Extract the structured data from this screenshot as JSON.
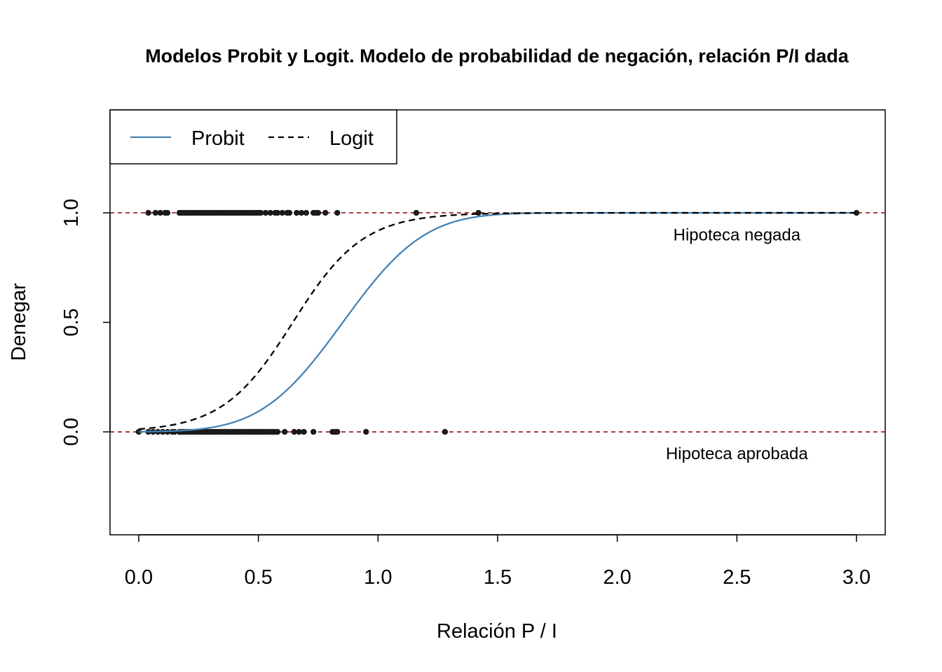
{
  "chart_data": {
    "type": "line",
    "title": "Modelos Probit y Logit. Modelo de probabilidad de negación, relación P/I dada",
    "xlabel": "Relación P / I",
    "ylabel": "Denegar",
    "xlim": [
      -0.12,
      3.12
    ],
    "ylim": [
      -0.47,
      1.47
    ],
    "x_ticks": [
      0.0,
      0.5,
      1.0,
      1.5,
      2.0,
      2.5,
      3.0
    ],
    "x_tick_labels": [
      "0.0",
      "0.5",
      "1.0",
      "1.5",
      "2.0",
      "2.5",
      "3.0"
    ],
    "y_ticks": [
      0.0,
      0.5,
      1.0
    ],
    "y_tick_labels": [
      "0.0",
      "0.5",
      "1.0"
    ],
    "grid": false,
    "reference_lines": [
      {
        "y": 0.0,
        "style": "dashed",
        "color": "#8b0000"
      },
      {
        "y": 1.0,
        "style": "dashed",
        "color": "#8b0000"
      }
    ],
    "series": [
      {
        "name": "Probit",
        "style": "solid",
        "color": "#4682b4",
        "model": "probit",
        "intercept": -3.19,
        "slope": 3.74,
        "x_range": [
          0.0,
          3.0
        ]
      },
      {
        "name": "Logit",
        "style": "dashed",
        "color": "#000000",
        "model": "logit",
        "intercept": -4.38,
        "slope": 6.8,
        "x_range": [
          0.0,
          3.0
        ]
      }
    ],
    "points": {
      "color": "#1a1a1a",
      "denied_y1": [
        0.04,
        0.07,
        0.09,
        0.11,
        0.12,
        0.17,
        0.18,
        0.19,
        0.2,
        0.21,
        0.22,
        0.23,
        0.24,
        0.25,
        0.26,
        0.27,
        0.28,
        0.29,
        0.3,
        0.31,
        0.32,
        0.33,
        0.34,
        0.35,
        0.36,
        0.37,
        0.38,
        0.39,
        0.4,
        0.41,
        0.42,
        0.43,
        0.44,
        0.45,
        0.46,
        0.47,
        0.48,
        0.49,
        0.5,
        0.51,
        0.53,
        0.55,
        0.57,
        0.58,
        0.6,
        0.62,
        0.63,
        0.66,
        0.68,
        0.7,
        0.73,
        0.74,
        0.75,
        0.78,
        0.83,
        1.16,
        1.42,
        3.0
      ],
      "approved_y0": [
        0.0,
        0.04,
        0.06,
        0.08,
        0.1,
        0.12,
        0.14,
        0.15,
        0.17,
        0.18,
        0.19,
        0.2,
        0.21,
        0.22,
        0.23,
        0.24,
        0.25,
        0.26,
        0.27,
        0.28,
        0.29,
        0.3,
        0.31,
        0.32,
        0.33,
        0.34,
        0.35,
        0.36,
        0.37,
        0.38,
        0.39,
        0.4,
        0.41,
        0.42,
        0.43,
        0.44,
        0.45,
        0.46,
        0.47,
        0.48,
        0.49,
        0.5,
        0.51,
        0.52,
        0.53,
        0.54,
        0.55,
        0.56,
        0.57,
        0.58,
        0.61,
        0.65,
        0.67,
        0.69,
        0.73,
        0.81,
        0.82,
        0.83,
        0.95,
        1.28
      ]
    },
    "legend": {
      "placement": "top-left",
      "entries": [
        "Probit",
        "Logit"
      ]
    },
    "annotations": [
      {
        "text": "Hipoteca negada",
        "x": 2.5,
        "y": 0.9
      },
      {
        "text": "Hipoteca aprobada",
        "x": 2.5,
        "y": -0.1
      }
    ]
  }
}
